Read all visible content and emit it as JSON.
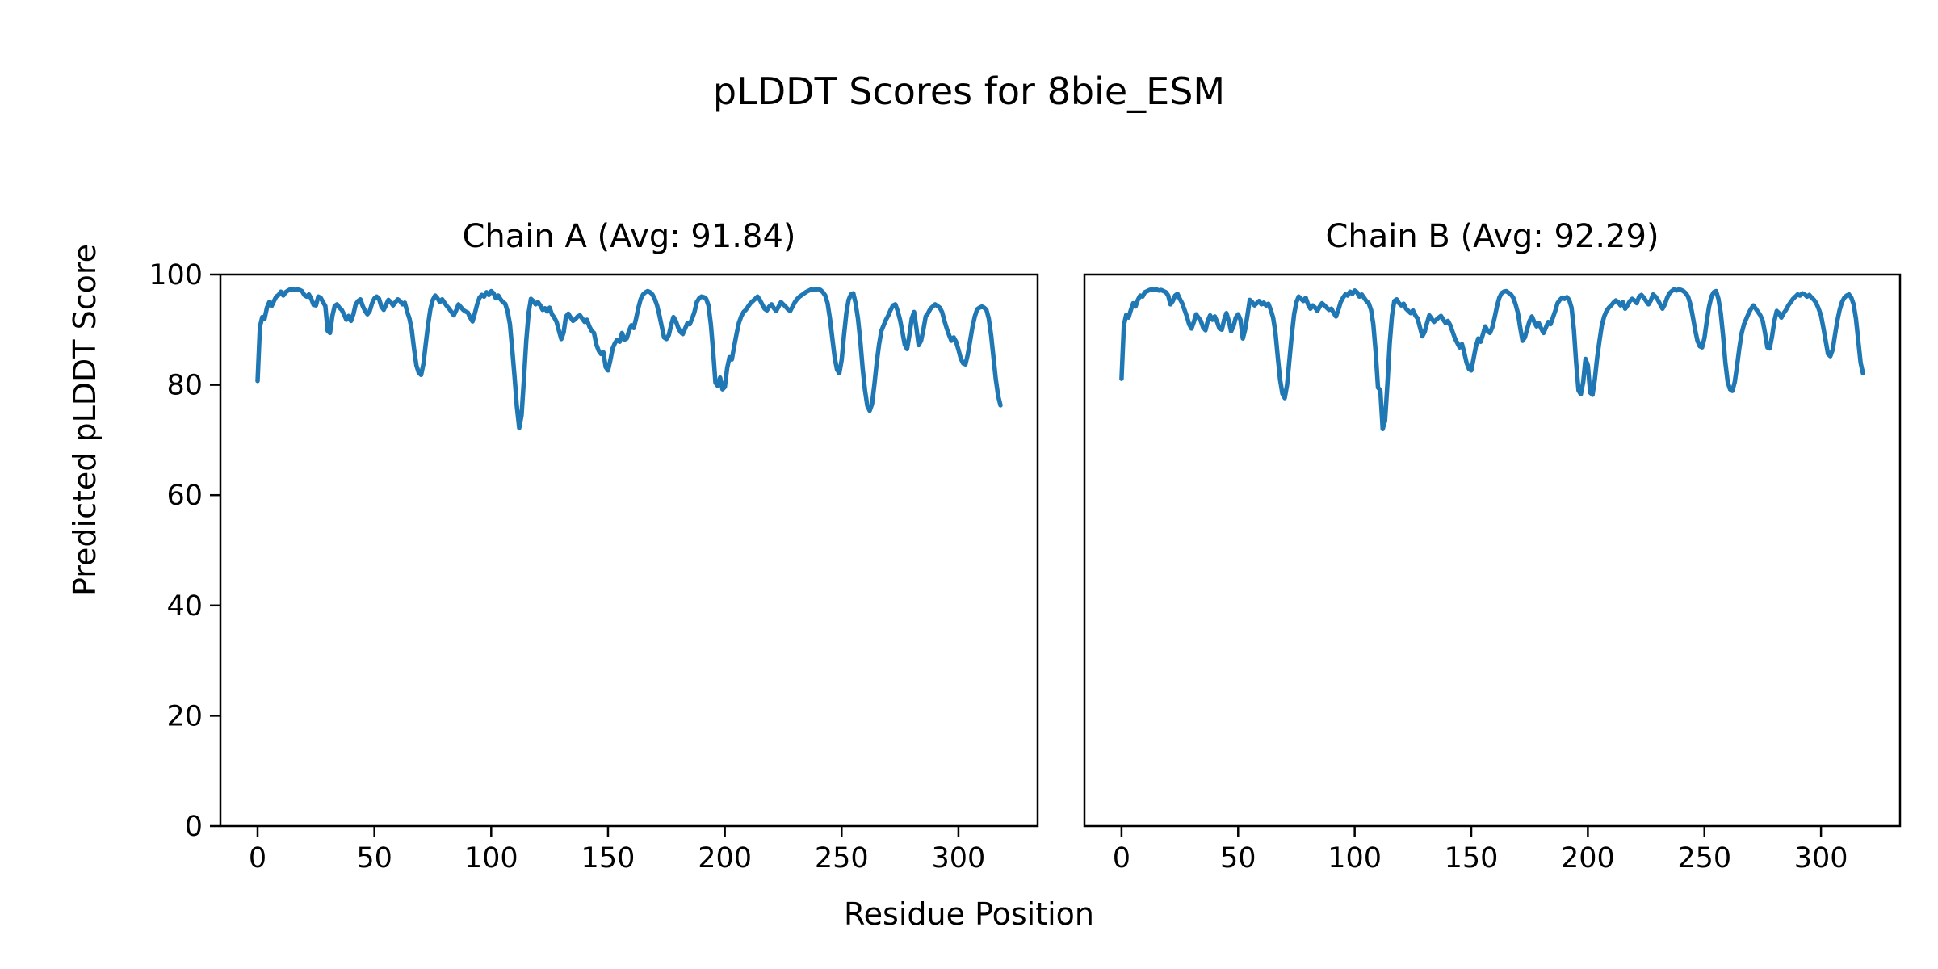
{
  "figure": {
    "title": "pLDDT Scores for 8bie_ESM",
    "background_color": "#ffffff",
    "text_color": "#000000"
  },
  "chart_data": {
    "type": "line",
    "title": "pLDDT Scores for 8bie_ESM",
    "xlabel": "Residue Position",
    "ylabel": "Predicted pLDDT Score",
    "xlim": [
      -15.9,
      333.9
    ],
    "ylim": [
      0,
      100
    ],
    "xticks": [
      0,
      50,
      100,
      150,
      200,
      250,
      300
    ],
    "yticks": [
      0,
      20,
      40,
      60,
      80,
      100
    ],
    "grid": false,
    "legend": "none",
    "line_color": "#1f77b4",
    "x_start": 0,
    "x_step": 1,
    "subplots": [
      {
        "chain": "A",
        "avg": 91.84,
        "title": "Chain A (Avg: 91.84)",
        "n_residues": 319,
        "y": [
          80.7,
          90.5,
          92.3,
          92.0,
          94.0,
          95.0,
          94.3,
          95.2,
          96.0,
          96.3,
          96.9,
          96.2,
          96.8,
          97.1,
          97.3,
          97.3,
          97.2,
          97.3,
          97.2,
          97.0,
          96.3,
          96.0,
          96.4,
          95.6,
          94.5,
          94.4,
          96.0,
          95.8,
          95.0,
          94.3,
          89.8,
          89.4,
          92.5,
          94.3,
          94.6,
          94.0,
          93.6,
          92.8,
          91.8,
          92.5,
          91.6,
          92.8,
          94.6,
          95.2,
          95.5,
          94.3,
          93.4,
          92.8,
          93.4,
          94.8,
          95.7,
          96.0,
          95.6,
          94.2,
          93.6,
          94.5,
          95.4,
          95.0,
          94.4,
          95.0,
          95.5,
          95.2,
          94.6,
          94.9,
          93.3,
          92.0,
          90.0,
          86.5,
          83.5,
          82.2,
          81.8,
          83.8,
          87.5,
          91.0,
          93.8,
          95.4,
          96.2,
          95.7,
          95.0,
          95.5,
          94.9,
          94.3,
          93.8,
          93.2,
          92.6,
          93.5,
          94.6,
          94.1,
          93.6,
          93.3,
          93.1,
          92.2,
          91.5,
          93.0,
          94.6,
          95.8,
          96.3,
          96.0,
          96.8,
          96.3,
          97.0,
          96.6,
          95.7,
          96.2,
          95.5,
          95.0,
          94.7,
          93.3,
          91.0,
          86.5,
          81.5,
          76.0,
          72.2,
          74.5,
          81.0,
          88.0,
          93.0,
          95.6,
          95.2,
          94.6,
          95.0,
          94.4,
          93.6,
          93.9,
          93.3,
          94.0,
          92.8,
          92.2,
          91.4,
          89.8,
          88.3,
          89.5,
          92.4,
          92.9,
          92.2,
          91.6,
          91.9,
          92.4,
          92.6,
          92.0,
          91.4,
          91.8,
          90.6,
          89.8,
          89.4,
          87.3,
          86.2,
          85.6,
          85.9,
          83.2,
          82.6,
          84.5,
          86.6,
          87.6,
          88.2,
          87.8,
          89.4,
          88.2,
          88.4,
          89.8,
          90.8,
          90.3,
          92.0,
          94.0,
          95.6,
          96.4,
          96.8,
          97.0,
          96.8,
          96.4,
          95.6,
          94.4,
          92.6,
          90.6,
          88.6,
          88.3,
          89.0,
          90.8,
          92.3,
          91.6,
          90.4,
          89.6,
          89.2,
          90.2,
          91.2,
          91.0,
          92.0,
          93.2,
          95.0,
          95.7,
          96.0,
          95.9,
          95.6,
          94.4,
          91.0,
          86.0,
          80.4,
          79.8,
          81.3,
          79.2,
          79.6,
          83.0,
          85.0,
          84.6,
          87.0,
          89.2,
          91.2,
          92.4,
          93.2,
          93.6,
          94.2,
          94.8,
          95.2,
          95.6,
          96.0,
          95.4,
          94.6,
          93.8,
          93.5,
          94.2,
          94.6,
          93.9,
          93.4,
          94.2,
          95.0,
          94.6,
          94.2,
          93.7,
          93.4,
          94.2,
          95.0,
          95.6,
          96.0,
          96.3,
          96.6,
          96.9,
          97.1,
          97.3,
          97.2,
          97.3,
          97.4,
          97.2,
          96.8,
          96.2,
          94.8,
          92.0,
          88.5,
          85.0,
          82.8,
          82.1,
          84.5,
          89.0,
          93.0,
          95.4,
          96.4,
          96.6,
          94.8,
          92.0,
          88.0,
          83.0,
          79.0,
          76.2,
          75.3,
          76.5,
          80.0,
          84.0,
          87.3,
          89.8,
          90.8,
          91.8,
          92.6,
          93.6,
          94.4,
          94.6,
          93.4,
          91.8,
          89.6,
          87.3,
          86.5,
          89.0,
          92.0,
          93.2,
          90.4,
          87.2,
          88.0,
          90.0,
          92.4,
          93.0,
          93.8,
          94.2,
          94.6,
          94.3,
          94.0,
          93.2,
          91.6,
          90.2,
          89.0,
          88.0,
          88.6,
          87.8,
          86.4,
          84.8,
          83.9,
          83.7,
          85.5,
          88.0,
          90.5,
          92.4,
          93.7,
          94.0,
          94.2,
          94.0,
          93.6,
          92.0,
          89.0,
          85.0,
          81.0,
          78.0,
          76.3
        ]
      },
      {
        "chain": "B",
        "avg": 92.29,
        "title": "Chain B (Avg: 92.29)",
        "n_residues": 319,
        "y": [
          81.1,
          90.8,
          92.7,
          92.2,
          93.6,
          94.8,
          94.2,
          95.4,
          96.2,
          96.0,
          96.8,
          97.0,
          97.2,
          97.3,
          97.2,
          97.3,
          97.1,
          97.2,
          97.0,
          96.8,
          96.2,
          94.6,
          95.2,
          96.2,
          96.5,
          95.6,
          94.8,
          93.6,
          92.4,
          91.0,
          90.2,
          91.4,
          92.8,
          92.2,
          91.6,
          90.4,
          89.9,
          91.6,
          92.6,
          91.8,
          92.4,
          91.4,
          90.2,
          90.0,
          91.8,
          93.0,
          91.6,
          89.7,
          90.6,
          92.2,
          92.8,
          91.8,
          88.4,
          90.0,
          92.6,
          95.4,
          95.0,
          94.4,
          94.8,
          95.2,
          94.6,
          94.9,
          94.4,
          94.7,
          93.6,
          92.2,
          89.5,
          85.0,
          81.0,
          78.4,
          77.6,
          80.0,
          84.5,
          89.0,
          92.8,
          95.0,
          96.0,
          95.6,
          95.2,
          95.8,
          94.6,
          93.8,
          94.4,
          94.0,
          93.4,
          94.2,
          94.8,
          94.4,
          94.0,
          93.6,
          93.8,
          93.0,
          92.4,
          93.6,
          95.0,
          95.8,
          96.4,
          96.2,
          96.9,
          96.5,
          97.1,
          96.8,
          96.0,
          96.4,
          95.8,
          95.2,
          94.8,
          93.6,
          91.0,
          86.0,
          79.5,
          79.0,
          72.0,
          73.5,
          80.0,
          87.5,
          92.5,
          95.2,
          95.5,
          94.8,
          94.4,
          94.7,
          93.8,
          93.4,
          93.0,
          93.5,
          92.6,
          92.0,
          90.4,
          88.8,
          89.6,
          91.2,
          92.6,
          92.0,
          91.4,
          91.8,
          92.2,
          92.5,
          91.8,
          91.2,
          91.6,
          90.8,
          89.6,
          88.4,
          87.6,
          86.8,
          87.4,
          85.8,
          84.0,
          82.9,
          82.6,
          84.8,
          87.0,
          88.4,
          87.8,
          89.2,
          90.6,
          89.8,
          89.4,
          90.4,
          92.2,
          94.2,
          95.8,
          96.6,
          96.9,
          97.0,
          96.7,
          96.4,
          95.8,
          94.6,
          93.0,
          90.4,
          88.0,
          88.6,
          90.2,
          91.6,
          92.4,
          91.4,
          90.6,
          91.2,
          90.2,
          89.4,
          90.4,
          91.4,
          91.0,
          92.2,
          93.4,
          94.8,
          95.4,
          95.8,
          95.6,
          95.9,
          95.4,
          94.0,
          90.0,
          84.0,
          79.0,
          78.3,
          80.5,
          84.7,
          83.5,
          78.6,
          78.2,
          81.0,
          84.9,
          88.0,
          90.8,
          92.4,
          93.4,
          94.0,
          94.4,
          94.9,
          95.3,
          95.0,
          94.4,
          95.0,
          93.8,
          94.4,
          95.2,
          95.6,
          95.3,
          94.8,
          96.0,
          96.3,
          95.8,
          95.2,
          94.6,
          95.3,
          96.4,
          96.0,
          95.4,
          94.6,
          93.8,
          94.6,
          95.8,
          96.6,
          97.0,
          97.3,
          97.1,
          97.3,
          97.2,
          97.0,
          96.6,
          96.0,
          94.6,
          92.4,
          90.0,
          88.0,
          87.0,
          86.8,
          88.5,
          91.5,
          94.2,
          96.0,
          96.8,
          97.0,
          95.6,
          93.0,
          89.0,
          84.0,
          80.5,
          79.2,
          78.9,
          80.5,
          83.5,
          86.8,
          89.4,
          91.0,
          92.0,
          93.0,
          93.8,
          94.4,
          93.8,
          93.2,
          92.6,
          91.6,
          89.4,
          86.8,
          86.6,
          88.8,
          91.6,
          93.4,
          93.0,
          92.2,
          93.0,
          93.6,
          94.4,
          95.0,
          95.6,
          96.0,
          96.4,
          96.2,
          96.6,
          96.4,
          96.0,
          96.3,
          95.8,
          95.4,
          94.8,
          93.8,
          92.6,
          90.4,
          88.0,
          85.6,
          85.2,
          86.4,
          89.0,
          91.6,
          93.6,
          95.0,
          95.8,
          96.2,
          96.4,
          95.8,
          94.6,
          92.0,
          88.0,
          84.0,
          82.1
        ]
      }
    ]
  }
}
